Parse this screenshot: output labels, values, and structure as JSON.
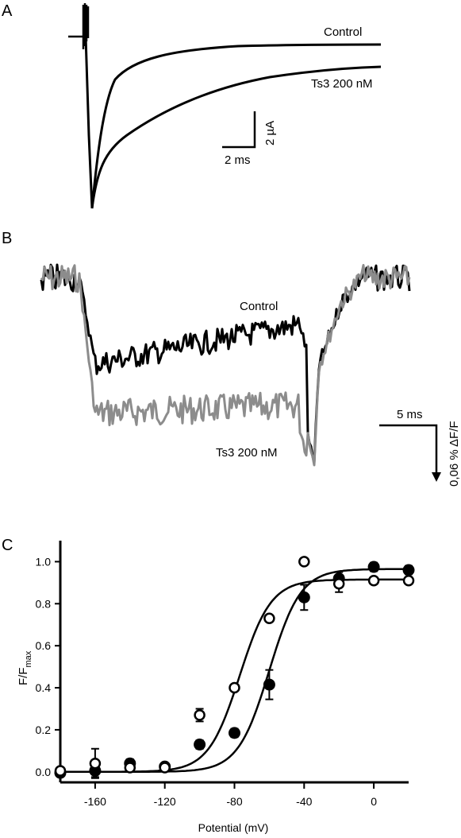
{
  "panels": {
    "A": {
      "letter": "A",
      "labels": {
        "control": "Control",
        "toxin": "Ts3 200 nM"
      },
      "scalebar": {
        "time": "2 ms",
        "current": "2 µA"
      }
    },
    "B": {
      "letter": "B",
      "labels": {
        "control": "Control",
        "toxin": "Ts3 200 nM"
      },
      "scalebar": {
        "time": "5 ms",
        "fluorescence": "0,06 % ΔF/F"
      },
      "colors": {
        "control": "#000000",
        "toxin": "#8c8c8c"
      }
    },
    "C": {
      "letter": "C"
    }
  },
  "chart_data": {
    "type": "scatter",
    "xlabel": "Potential (mV)",
    "ylabel": {
      "main": "F/F",
      "sub": "max"
    },
    "xlim": [
      -180,
      20
    ],
    "ylim": [
      -0.05,
      1.1
    ],
    "xticks": [
      -160,
      -120,
      -80,
      -40,
      0
    ],
    "yticks": [
      0.0,
      0.2,
      0.4,
      0.6,
      0.8,
      1.0
    ],
    "series": [
      {
        "marker": "filled",
        "x": [
          -180,
          -160,
          -140,
          -120,
          -100,
          -80,
          -60,
          -40,
          -20,
          0,
          20
        ],
        "y": [
          -0.005,
          0.005,
          0.04,
          0.025,
          0.13,
          0.185,
          0.415,
          0.83,
          0.92,
          0.975,
          0.96
        ],
        "err": [
          0,
          0.03,
          0.02,
          0.01,
          0.02,
          0.02,
          0.07,
          0.06,
          0.03,
          0.02,
          0.02
        ],
        "fit": {
          "top": 0.965,
          "vhalf": -60,
          "k": 9
        }
      },
      {
        "marker": "open",
        "x": [
          -180,
          -160,
          -140,
          -120,
          -100,
          -80,
          -60,
          -40,
          -20,
          0,
          20
        ],
        "y": [
          0.005,
          0.04,
          0.02,
          0.02,
          0.27,
          0.4,
          0.73,
          1.0,
          0.895,
          0.91,
          0.91
        ],
        "err": [
          0,
          0.07,
          0.01,
          0.01,
          0.03,
          0.01,
          0.01,
          0.01,
          0.04,
          0.01,
          0.01
        ],
        "fit": {
          "top": 0.915,
          "vhalf": -77,
          "k": 9
        }
      }
    ]
  }
}
